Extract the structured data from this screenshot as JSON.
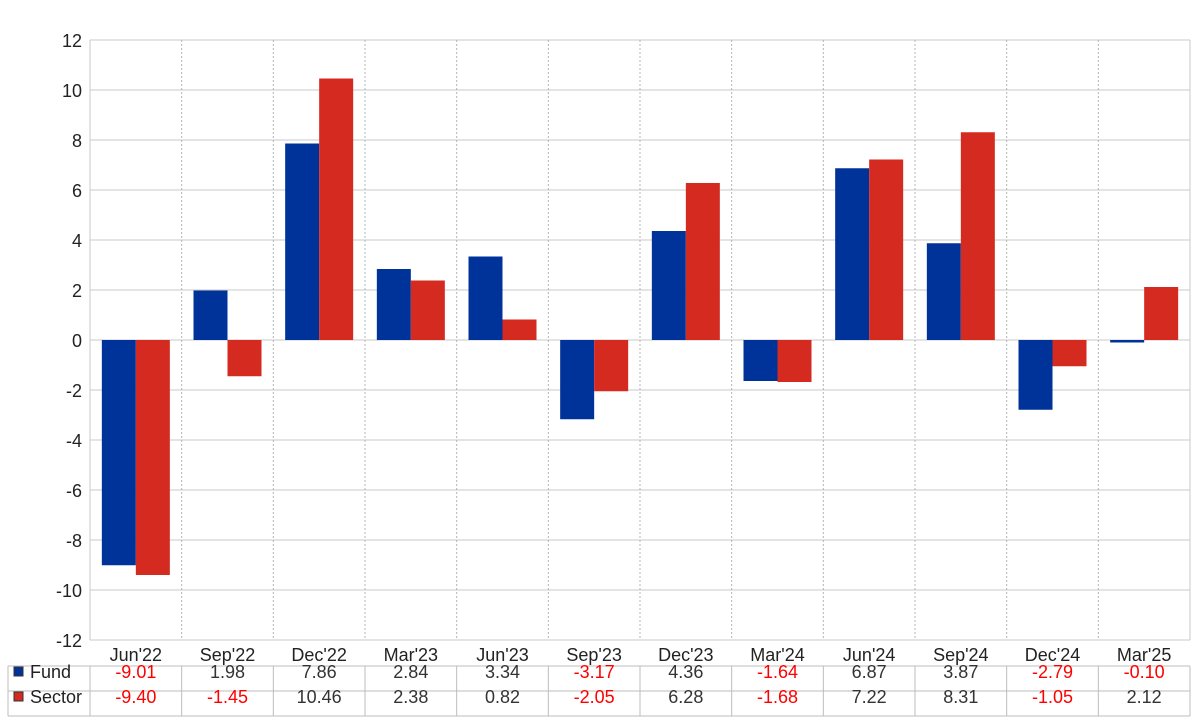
{
  "chart_data": {
    "type": "bar",
    "categories": [
      "Jun'22",
      "Sep'22",
      "Dec'22",
      "Mar'23",
      "Jun'23",
      "Sep'23",
      "Dec'23",
      "Mar'24",
      "Jun'24",
      "Sep'24",
      "Dec'24",
      "Mar'25"
    ],
    "series": [
      {
        "name": "Fund",
        "color": "#003399",
        "values": [
          -9.01,
          1.98,
          7.86,
          2.84,
          3.34,
          -3.17,
          4.36,
          -1.64,
          6.87,
          3.87,
          -2.79,
          -0.1
        ],
        "labels": [
          "-9.01",
          "1.98",
          "7.86",
          "2.84",
          "3.34",
          "-3.17",
          "4.36",
          "-1.64",
          "6.87",
          "3.87",
          "-2.79",
          "-0.10"
        ]
      },
      {
        "name": "Sector",
        "color": "#d42a20",
        "values": [
          -9.4,
          -1.45,
          10.46,
          2.38,
          0.82,
          -2.05,
          6.28,
          -1.68,
          7.22,
          8.31,
          -1.05,
          2.12
        ],
        "labels": [
          "-9.40",
          "-1.45",
          "10.46",
          "2.38",
          "0.82",
          "-2.05",
          "6.28",
          "-1.68",
          "7.22",
          "8.31",
          "-1.05",
          "2.12"
        ]
      }
    ],
    "ylim": [
      -12,
      12
    ],
    "yticks": [
      "-12",
      "-10",
      "-8",
      "-6",
      "-4",
      "-2",
      "0",
      "2",
      "4",
      "6",
      "8",
      "10",
      "12"
    ],
    "grid": true,
    "legend": "table-below",
    "negative_label_color": "#ff0000",
    "positive_label_color": "#333333"
  }
}
